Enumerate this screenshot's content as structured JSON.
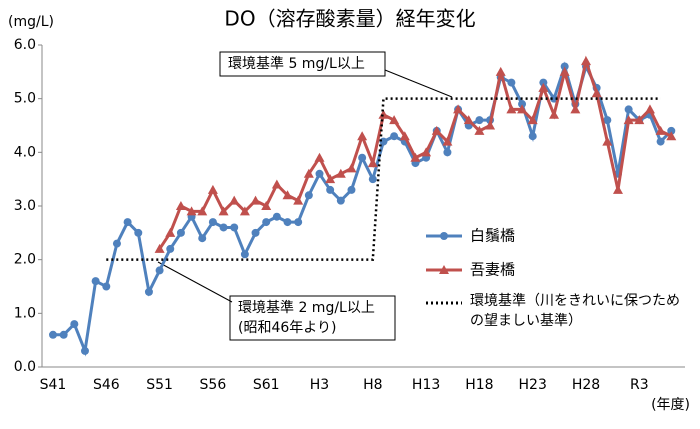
{
  "chart_data": {
    "type": "line",
    "title": "DO（溶存酸素量）経年変化",
    "y_unit": "(mg/L)",
    "x_unit": "(年度)",
    "categories": [
      "S41",
      null,
      null,
      null,
      null,
      "S46",
      null,
      null,
      null,
      null,
      "S51",
      null,
      null,
      null,
      null,
      "S56",
      null,
      null,
      null,
      null,
      "S61",
      null,
      null,
      null,
      null,
      "H3",
      null,
      null,
      null,
      null,
      "H8",
      null,
      null,
      null,
      null,
      "H13",
      null,
      null,
      null,
      null,
      "H18",
      null,
      null,
      null,
      null,
      "H23",
      null,
      null,
      null,
      null,
      "H28",
      null,
      null,
      null,
      null,
      "R3",
      null,
      null,
      null
    ],
    "ylim": [
      0,
      6
    ],
    "yticks": [
      {
        "value": 0,
        "label": "0.0"
      },
      {
        "value": 1,
        "label": "1.0"
      },
      {
        "value": 2,
        "label": "2.0"
      },
      {
        "value": 3,
        "label": "3.0"
      },
      {
        "value": 4,
        "label": "4.0"
      },
      {
        "value": 5,
        "label": "5.0"
      },
      {
        "value": 6,
        "label": "6.0"
      }
    ],
    "series": [
      {
        "name": "白鬚橋",
        "color": "#4f81bd",
        "marker": "circle",
        "values": [
          0.6,
          0.6,
          0.8,
          0.3,
          1.6,
          1.5,
          2.3,
          2.7,
          2.5,
          1.4,
          1.8,
          2.2,
          2.5,
          2.8,
          2.4,
          2.7,
          2.6,
          2.6,
          2.1,
          2.5,
          2.7,
          2.8,
          2.7,
          2.7,
          3.2,
          3.6,
          3.3,
          3.1,
          3.3,
          3.9,
          3.5,
          4.2,
          4.3,
          4.2,
          3.8,
          3.9,
          4.4,
          4.0,
          4.8,
          4.5,
          4.6,
          4.6,
          5.4,
          5.3,
          4.9,
          4.3,
          5.3,
          5.0,
          5.6,
          4.9,
          5.6,
          5.2,
          4.6,
          3.6,
          4.8,
          4.6,
          4.7,
          4.2,
          4.4
        ]
      },
      {
        "name": "吾妻橋",
        "color": "#c0504d",
        "marker": "triangle",
        "values": [
          null,
          null,
          null,
          null,
          null,
          null,
          null,
          null,
          null,
          null,
          2.2,
          2.5,
          3.0,
          2.9,
          2.9,
          3.3,
          2.9,
          3.1,
          2.9,
          3.1,
          3.0,
          3.4,
          3.2,
          3.1,
          3.6,
          3.9,
          3.5,
          3.6,
          3.7,
          4.3,
          3.8,
          4.7,
          4.6,
          4.3,
          3.9,
          4.0,
          4.4,
          4.2,
          4.8,
          4.6,
          4.4,
          4.5,
          5.5,
          4.8,
          4.8,
          4.6,
          5.2,
          4.7,
          5.5,
          4.8,
          5.7,
          5.1,
          4.2,
          3.3,
          4.6,
          4.6,
          4.8,
          4.4,
          4.3
        ]
      },
      {
        "name": "環境基準（川をきれいに保つための望ましい基準）",
        "color": "#000000",
        "marker": "none",
        "dotted": true,
        "values": [
          null,
          null,
          null,
          null,
          null,
          2,
          2,
          2,
          2,
          2,
          2,
          2,
          2,
          2,
          2,
          2,
          2,
          2,
          2,
          2,
          2,
          2,
          2,
          2,
          2,
          2,
          2,
          2,
          2,
          2,
          2,
          5,
          5,
          5,
          5,
          5,
          5,
          5,
          5,
          5,
          5,
          5,
          5,
          5,
          5,
          5,
          5,
          5,
          5,
          5,
          5,
          5,
          5,
          5,
          5,
          5,
          5,
          5,
          null
        ]
      }
    ],
    "annotations": [
      {
        "lines": [
          "環境基準 5 mg/L以上"
        ]
      },
      {
        "lines": [
          "環境基準 2 mg/L以上",
          "(昭和46年より)"
        ]
      }
    ]
  }
}
